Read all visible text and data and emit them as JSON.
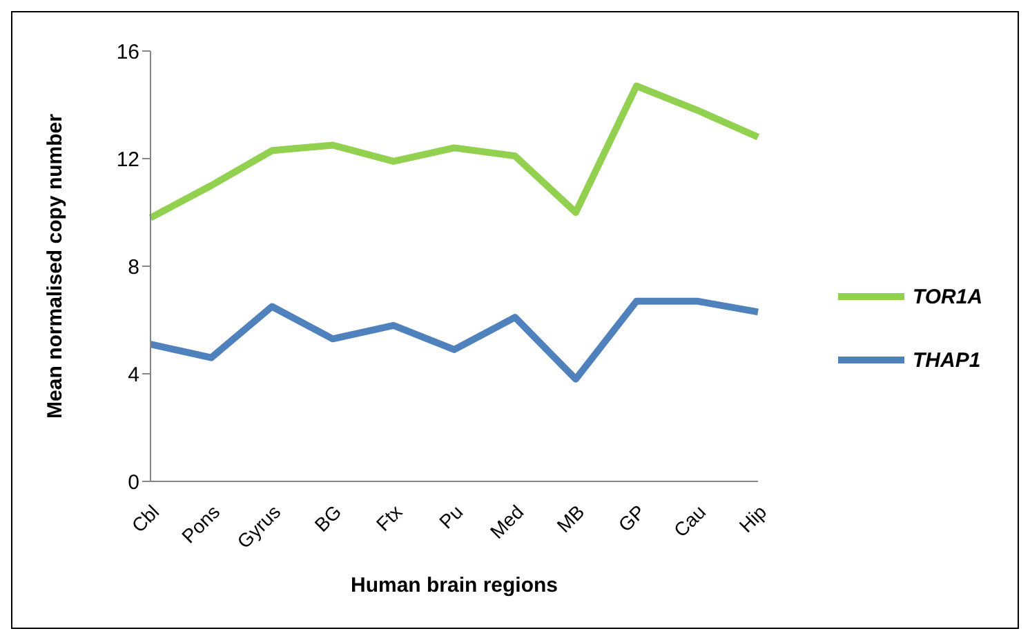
{
  "chart_data": {
    "type": "line",
    "xlabel": "Human brain regions",
    "ylabel": "Mean normalised copy number",
    "categories": [
      "Cbl",
      "Pons",
      "Gyrus",
      "BG",
      "Ftx",
      "Pu",
      "Med",
      "MB",
      "GP",
      "Cau",
      "Hip"
    ],
    "series": [
      {
        "name": "TOR1A",
        "color": "#92d050",
        "values": [
          9.8,
          11.0,
          12.3,
          12.5,
          11.9,
          12.4,
          12.1,
          10.0,
          14.7,
          13.8,
          12.8
        ]
      },
      {
        "name": "THAP1",
        "color": "#4f81bd",
        "values": [
          5.1,
          4.6,
          6.5,
          5.3,
          5.8,
          4.9,
          6.1,
          3.8,
          6.7,
          6.7,
          6.3
        ]
      }
    ],
    "ylim": [
      0,
      16
    ],
    "yticks": [
      0,
      4,
      8,
      12,
      16
    ],
    "grid": false,
    "legend": "right",
    "marker": "none",
    "line_style": "solid"
  }
}
